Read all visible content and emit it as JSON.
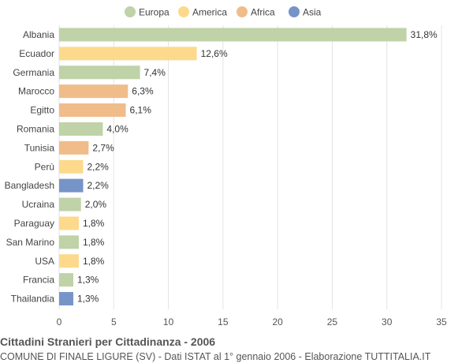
{
  "chart_data": {
    "type": "bar",
    "orientation": "horizontal",
    "title": "Cittadini Stranieri per Cittadinanza - 2006",
    "subtitle": "COMUNE DI FINALE LIGURE (SV) - Dati ISTAT al 1° gennaio 2006 - Elaborazione TUTTITALIA.IT",
    "xlim": [
      0,
      35
    ],
    "xticks": [
      0,
      5,
      10,
      15,
      20,
      25,
      30,
      35
    ],
    "grid": true,
    "legend_position": "top",
    "legend": [
      {
        "name": "Europa",
        "color": "#bfd2a8"
      },
      {
        "name": "America",
        "color": "#fdd98b"
      },
      {
        "name": "Africa",
        "color": "#f0bc8a"
      },
      {
        "name": "Asia",
        "color": "#7694c8"
      }
    ],
    "categories": [
      "Albania",
      "Ecuador",
      "Germania",
      "Marocco",
      "Egitto",
      "Romania",
      "Tunisia",
      "Perù",
      "Bangladesh",
      "Ucraina",
      "Paraguay",
      "San Marino",
      "USA",
      "Francia",
      "Thailandia"
    ],
    "values": [
      31.8,
      12.6,
      7.4,
      6.3,
      6.1,
      4.0,
      2.7,
      2.2,
      2.2,
      2.0,
      1.8,
      1.8,
      1.8,
      1.3,
      1.3
    ],
    "value_labels": [
      "31,8%",
      "12,6%",
      "7,4%",
      "6,3%",
      "6,1%",
      "4,0%",
      "2,7%",
      "2,2%",
      "2,2%",
      "2,0%",
      "1,8%",
      "1,8%",
      "1,8%",
      "1,3%",
      "1,3%"
    ],
    "groups": [
      "Europa",
      "America",
      "Europa",
      "Africa",
      "Africa",
      "Europa",
      "Africa",
      "America",
      "Asia",
      "Europa",
      "America",
      "Europa",
      "America",
      "Europa",
      "Asia"
    ]
  }
}
